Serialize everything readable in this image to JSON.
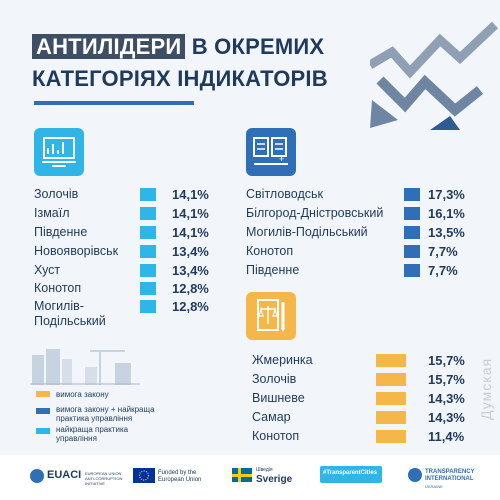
{
  "title": {
    "line1_highlight": "АНТИЛІДЕРИ",
    "line1_rest": " В ОКРЕМИХ",
    "line2": "КАТЕГОРІЯХ ІНДИКАТОРІВ"
  },
  "colors": {
    "cyan": "#2fb6e6",
    "blue": "#2e6fb7",
    "orange": "#f6b74a",
    "navy": "#1f3a5c"
  },
  "left_list": [
    {
      "name": "Золочів",
      "value": "14,1%"
    },
    {
      "name": "Ізмаїл",
      "value": "14,1%"
    },
    {
      "name": "Південне",
      "value": "14,1%"
    },
    {
      "name": "Новояворівськ",
      "value": "13,4%"
    },
    {
      "name": "Хуст",
      "value": "13,4%"
    },
    {
      "name": "Конотоп",
      "value": "12,8%"
    },
    {
      "name": "Могилів-",
      "name2": "Подільський",
      "value": "12,8%"
    }
  ],
  "right_top_list": [
    {
      "name": "Світловодськ",
      "value": "17,3%"
    },
    {
      "name": "Білгород-Дністровський",
      "value": "16,1%"
    },
    {
      "name": "Могилів-Подільський",
      "value": "13,5%"
    },
    {
      "name": "Конотоп",
      "value": "7,7%"
    },
    {
      "name": "Південне",
      "value": "7,7%"
    }
  ],
  "right_bottom_list": [
    {
      "name": "Жмеринка",
      "value": "15,7%"
    },
    {
      "name": "Золочів",
      "value": "15,7%"
    },
    {
      "name": "Вишневе",
      "value": "14,3%"
    },
    {
      "name": "Самар",
      "value": "14,3%"
    },
    {
      "name": "Конотоп",
      "value": "11,4%"
    }
  ],
  "legend": [
    {
      "label": "вимога закону",
      "color": "#f6b74a"
    },
    {
      "label": "вимога закону + найкраща практика управління",
      "color": "#2e6fb7"
    },
    {
      "label": "найкраща практика управління",
      "color": "#2fb6e6"
    }
  ],
  "footer": {
    "euaci": "EUACI",
    "euaci_sub": "EUROPEAN UNION ANTI-CORRUPTION INITIATIVE",
    "eu": "Funded by the European Union",
    "sweden": "Sverige",
    "sweden_pre": "Шведія",
    "hashtag": "#TransparentCities",
    "ti": "TRANSPARENCY INTERNATIONAL",
    "ti_sub": "UKRAINE"
  },
  "watermark": "Думская"
}
